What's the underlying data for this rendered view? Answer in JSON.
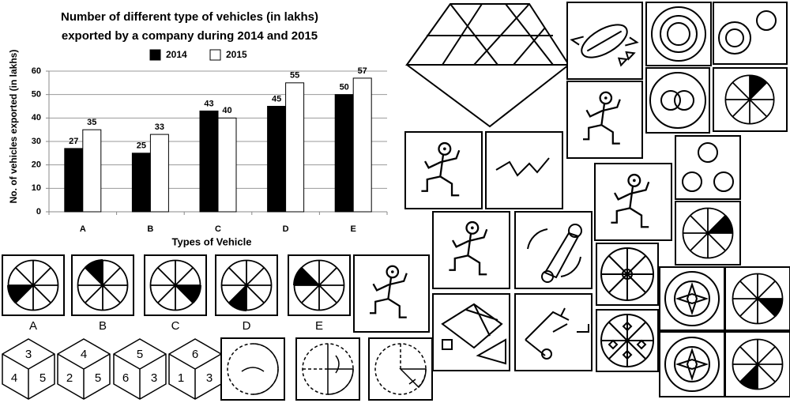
{
  "chart_data": {
    "type": "bar",
    "title": [
      "Number of different type of vehicles (in lakhs)",
      "exported by a company during 2014 and 2015"
    ],
    "x_label": "Types of Vehicle",
    "y_label": "No. of vehicles exported (in lakhs)",
    "categories": [
      "A",
      "B",
      "C",
      "D",
      "E"
    ],
    "series": [
      {
        "name": "2014",
        "color": "#000000",
        "values": [
          27,
          25,
          43,
          45,
          50
        ]
      },
      {
        "name": "2015",
        "color": "#ffffff",
        "values": [
          35,
          33,
          40,
          55,
          57
        ]
      }
    ],
    "ylim": [
      0,
      60
    ],
    "yticks": [
      0,
      10,
      20,
      30,
      40,
      50,
      60
    ],
    "grid": true,
    "data_labels": true
  },
  "options": [
    "A",
    "B",
    "C",
    "D",
    "E"
  ],
  "dice": [
    [
      3,
      4,
      5
    ],
    [
      4,
      2,
      5
    ],
    [
      5,
      6,
      3
    ],
    [
      6,
      1,
      3
    ]
  ]
}
